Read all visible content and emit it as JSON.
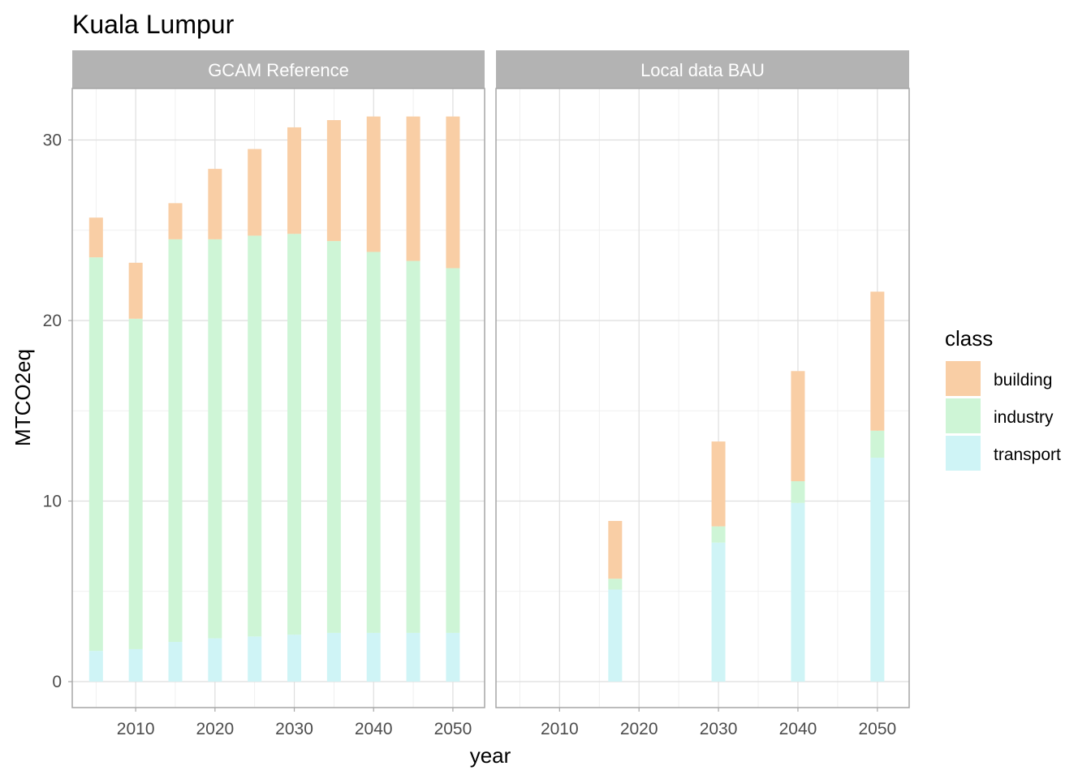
{
  "chart_data": {
    "type": "bar",
    "stacked": true,
    "title": "Kuala Lumpur",
    "xlabel": "year",
    "ylabel": "MTCO2eq",
    "ylim": [
      0,
      32
    ],
    "xlim": [
      2002,
      2054
    ],
    "x_ticks": [
      2010,
      2020,
      2030,
      2040,
      2050
    ],
    "y_ticks": [
      0,
      10,
      20,
      30
    ],
    "grid": true,
    "legend": {
      "title": "class",
      "position": "right",
      "entries": [
        {
          "name": "building",
          "color": "#f9ceA5"
        },
        {
          "name": "industry",
          "color": "#cef5d6"
        },
        {
          "name": "transport",
          "color": "#cff4f6"
        }
      ]
    },
    "panels": [
      {
        "label": "GCAM Reference",
        "x": [
          2005,
          2010,
          2015,
          2020,
          2025,
          2030,
          2035,
          2040,
          2045,
          2050
        ],
        "series": [
          {
            "name": "transport",
            "values": [
              1.7,
              1.8,
              2.2,
              2.4,
              2.5,
              2.6,
              2.7,
              2.7,
              2.7,
              2.7
            ]
          },
          {
            "name": "industry",
            "values": [
              21.8,
              18.3,
              22.3,
              22.1,
              22.2,
              22.2,
              21.7,
              21.1,
              20.6,
              20.2
            ]
          },
          {
            "name": "building",
            "values": [
              2.2,
              3.1,
              2.0,
              3.9,
              4.8,
              5.9,
              6.7,
              7.5,
              8.0,
              8.4
            ]
          }
        ]
      },
      {
        "label": "Local data BAU",
        "x": [
          2017,
          2030,
          2040,
          2050
        ],
        "series": [
          {
            "name": "transport",
            "values": [
              5.1,
              7.7,
              9.9,
              12.4
            ]
          },
          {
            "name": "industry",
            "values": [
              0.6,
              0.9,
              1.2,
              1.5
            ]
          },
          {
            "name": "building",
            "values": [
              3.2,
              4.7,
              6.1,
              7.7
            ]
          }
        ]
      }
    ]
  }
}
